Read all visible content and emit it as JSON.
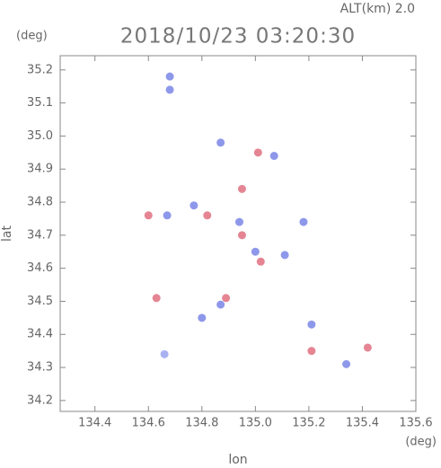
{
  "chart_data": {
    "type": "scatter",
    "title": "2018/10/23 03:20:30",
    "altitude_label": "ALT(km) 2.0",
    "y_unit": "(deg)",
    "x_unit": "(deg)",
    "xlabel": "lon",
    "ylabel": "lat",
    "xlim": [
      134.27,
      135.6
    ],
    "ylim": [
      34.167,
      35.243
    ],
    "xticks": [
      134.4,
      134.6,
      134.8,
      {
        "value": 135,
        "label": "135.0"
      },
      135.2,
      135.4,
      135.6
    ],
    "yticks": [
      34.2,
      34.3,
      34.4,
      34.5,
      34.6,
      34.7,
      34.8,
      34.9,
      {
        "value": 35,
        "label": "35.0"
      },
      35.1,
      35.2
    ],
    "x": [
      134.68,
      134.68,
      134.87,
      135.01,
      135.07,
      134.6,
      134.67,
      134.77,
      134.82,
      134.94,
      134.95,
      135.0,
      135.02,
      135.11,
      134.95,
      135.18,
      134.89,
      134.87,
      134.63,
      134.8,
      134.66,
      135.21,
      135.21,
      135.42,
      135.34
    ],
    "values": [
      35.14,
      35.18,
      34.98,
      34.95,
      34.94,
      34.76,
      34.76,
      34.79,
      34.76,
      34.74,
      34.7,
      34.65,
      34.62,
      34.64,
      34.84,
      34.74,
      34.51,
      34.49,
      34.51,
      34.45,
      34.34,
      34.43,
      34.35,
      34.36,
      34.31
    ],
    "colors": [
      "#7a86e6",
      "#7a86e6",
      "#7a86e6",
      "#e07080",
      "#7a86e6",
      "#e07080",
      "#7a86e6",
      "#7a86e6",
      "#e07080",
      "#7a86e6",
      "#e07080",
      "#7a86e6",
      "#e07080",
      "#7a86e6",
      "#e07080",
      "#7a86e6",
      "#e07080",
      "#7a86e6",
      "#e07080",
      "#7a86e6",
      "#9aa4ee",
      "#7a86e6",
      "#e07080",
      "#e07080",
      "#7a86e6"
    ]
  }
}
